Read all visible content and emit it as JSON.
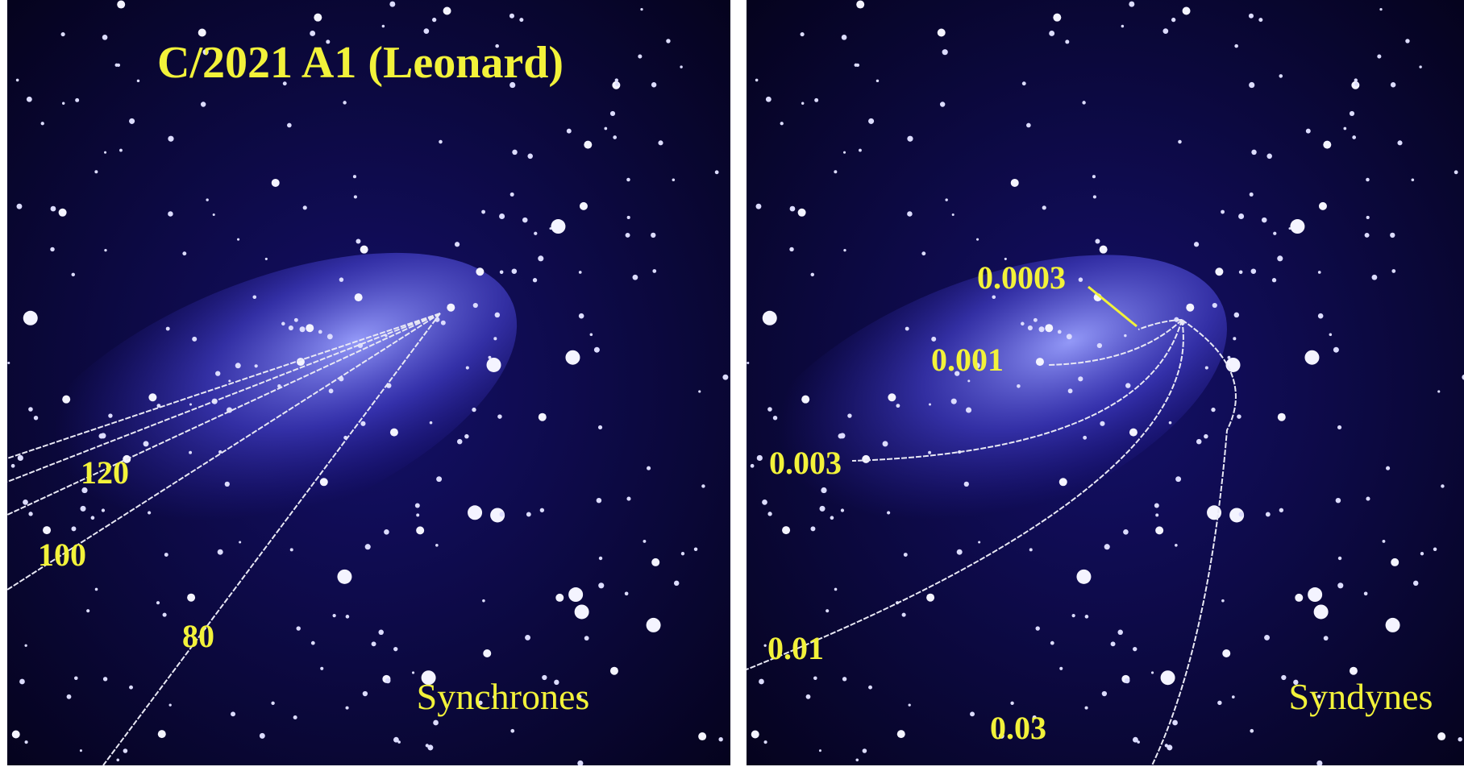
{
  "title": "C/2021 A1 (Leonard)",
  "left_panel": {
    "label": "Synchrones",
    "curve_labels": [
      "120",
      "100",
      "80"
    ]
  },
  "right_panel": {
    "label": "Syndynes",
    "curve_labels": [
      "0.0003",
      "0.001",
      "0.003",
      "0.01",
      "0.03"
    ]
  }
}
